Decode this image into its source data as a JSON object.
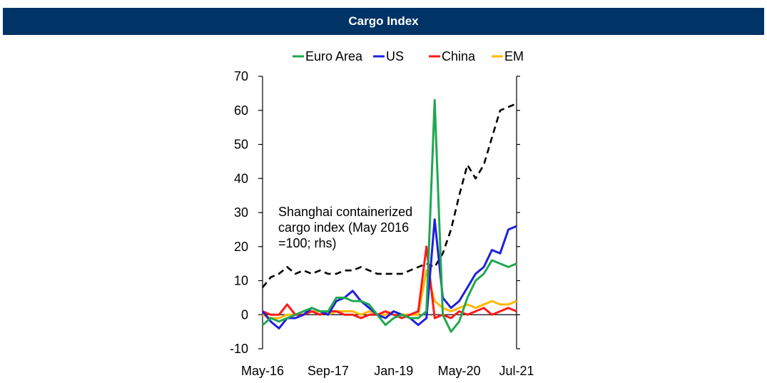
{
  "header": {
    "title": "Cargo Index"
  },
  "chart_data": {
    "type": "line",
    "title": "Cargo Index",
    "x": [
      "May-16",
      "Jul-16",
      "Sep-16",
      "Nov-16",
      "Jan-17",
      "Mar-17",
      "May-17",
      "Jul-17",
      "Sep-17",
      "Nov-17",
      "Jan-18",
      "Mar-18",
      "May-18",
      "Jul-18",
      "Sep-18",
      "Nov-18",
      "Jan-19",
      "Mar-19",
      "May-19",
      "Jul-19",
      "Sep-19",
      "Nov-19",
      "Jan-20",
      "Mar-20",
      "May-20",
      "Jul-20",
      "Sep-20",
      "Nov-20",
      "Jan-21",
      "Mar-21",
      "May-21",
      "Jul-21"
    ],
    "xtick_labels": [
      "May-16",
      "Sep-17",
      "Jan-19",
      "May-20",
      "Jul-21"
    ],
    "ylim": [
      -10,
      70
    ],
    "yticks": [
      -10,
      0,
      10,
      20,
      30,
      40,
      50,
      60,
      70
    ],
    "xlabel": "",
    "ylabel": "",
    "series": [
      {
        "name": "Euro Area",
        "color": "#1fa84f",
        "style": "solid",
        "values": [
          -3,
          -1,
          -2,
          -1,
          0,
          1,
          2,
          1,
          1,
          5,
          5,
          4,
          4,
          3,
          0,
          -3,
          -1,
          0,
          -1,
          -1,
          1,
          63,
          0,
          -5,
          -2,
          5,
          10,
          12,
          16,
          15,
          14,
          15
        ]
      },
      {
        "name": "US",
        "color": "#1f1fe0",
        "style": "solid",
        "values": [
          1,
          -2,
          -4,
          -1,
          -1,
          0,
          2,
          1,
          0,
          4,
          5,
          7,
          4,
          2,
          0,
          -1,
          1,
          0,
          -1,
          -3,
          -1,
          28,
          5,
          2,
          4,
          8,
          12,
          14,
          19,
          18,
          25,
          26
        ]
      },
      {
        "name": "China",
        "color": "#ff1a1a",
        "style": "solid",
        "values": [
          1,
          0,
          0,
          3,
          0,
          0,
          1,
          0,
          1,
          1,
          0,
          0,
          -1,
          0,
          0,
          1,
          0,
          -1,
          0,
          1,
          20,
          -1,
          0,
          -1,
          1,
          0,
          1,
          2,
          0,
          1,
          2,
          1
        ]
      },
      {
        "name": "EM",
        "color": "#ffb800",
        "style": "solid",
        "values": [
          0,
          -1,
          -1,
          0,
          0,
          0,
          1,
          1,
          0,
          1,
          1,
          1,
          0,
          1,
          0,
          0,
          1,
          0,
          0,
          0,
          13,
          4,
          2,
          1,
          2,
          3,
          2,
          3,
          4,
          3,
          3,
          4
        ]
      },
      {
        "name": "Shanghai containerized cargo index",
        "color": "#000000",
        "style": "dashed",
        "legend": false,
        "values": [
          8,
          11,
          12,
          14,
          12,
          13,
          12,
          13,
          12,
          12,
          13,
          13,
          14,
          13,
          12,
          12,
          12,
          12,
          13,
          14,
          15,
          14,
          18,
          25,
          35,
          44,
          40,
          44,
          52,
          60,
          61,
          62
        ]
      }
    ],
    "annotation": [
      "Shanghai containerized",
      "cargo index (May 2016",
      "=100; rhs)"
    ]
  }
}
